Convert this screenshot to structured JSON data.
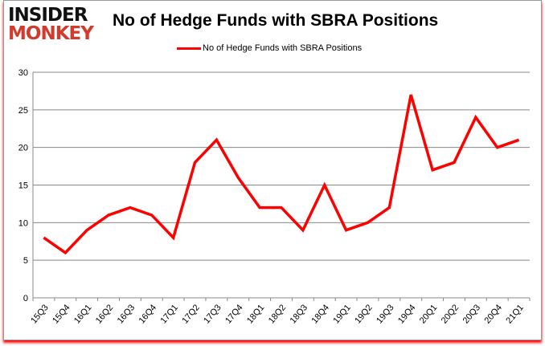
{
  "logo": {
    "line1": "INSIDER",
    "line2": "MONKEY"
  },
  "chart_data": {
    "type": "line",
    "title": "No of Hedge Funds with SBRA Positions",
    "categories": [
      "15Q3",
      "15Q4",
      "16Q1",
      "16Q2",
      "16Q3",
      "16Q4",
      "17Q1",
      "17Q2",
      "17Q3",
      "17Q4",
      "18Q1",
      "18Q2",
      "18Q3",
      "18Q4",
      "19Q1",
      "19Q2",
      "19Q3",
      "19Q4",
      "20Q1",
      "20Q2",
      "20Q3",
      "20Q4",
      "21Q1"
    ],
    "series": [
      {
        "name": "No of Hedge Funds with SBRA Positions",
        "color": "#ff0000",
        "values": [
          8,
          6,
          9,
          11,
          12,
          11,
          8,
          18,
          21,
          16,
          12,
          12,
          9,
          15,
          9,
          10,
          12,
          27,
          17,
          18,
          24,
          20,
          21
        ]
      }
    ],
    "ylim": [
      0,
      30
    ],
    "yticks": [
      0,
      5,
      10,
      15,
      20,
      25,
      30
    ],
    "grid": true,
    "legend": "top",
    "xlabel": "",
    "ylabel": ""
  }
}
